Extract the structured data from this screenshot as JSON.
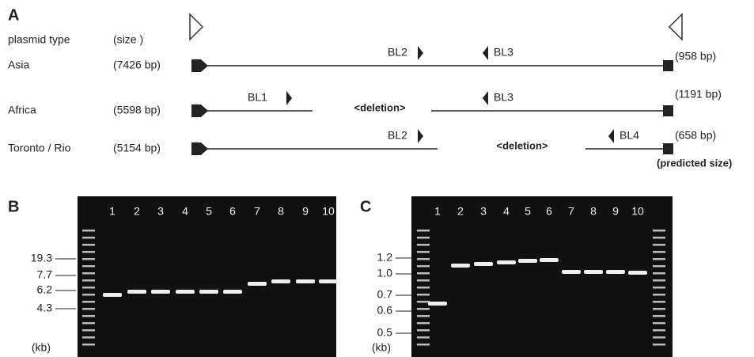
{
  "panel_a": {
    "label": "A",
    "header": {
      "type": "plasmid type",
      "size": "(size )"
    },
    "rows": [
      {
        "name": "Asia",
        "size": "(7426 bp)",
        "product": "(958 bp)",
        "primers": [
          "BL2",
          "BL3"
        ]
      },
      {
        "name": "Africa",
        "size": "(5598 bp)",
        "product": "(1191 bp)",
        "primers": [
          "BL1",
          "BL3"
        ],
        "deletion": "<deletion>"
      },
      {
        "name": "Toronto / Rio",
        "size": "(5154 bp)",
        "product": "(658 bp)",
        "primers": [
          "BL2",
          "BL4"
        ],
        "deletion": "<deletion>"
      }
    ],
    "note": "(predicted size)"
  },
  "panel_b": {
    "label": "B",
    "lanes": [
      "1",
      "2",
      "3",
      "4",
      "5",
      "6",
      "7",
      "8",
      "9",
      "10"
    ],
    "markers": [
      "19.3",
      "7.7",
      "6.2",
      "4.3"
    ],
    "unit": "(kb)"
  },
  "panel_c": {
    "label": "C",
    "lanes": [
      "1",
      "2",
      "3",
      "4",
      "5",
      "6",
      "7",
      "8",
      "9",
      "10"
    ],
    "markers": [
      "1.2",
      "1.0",
      "0.7",
      "0.6",
      "0.5"
    ],
    "unit": "(kb)"
  }
}
